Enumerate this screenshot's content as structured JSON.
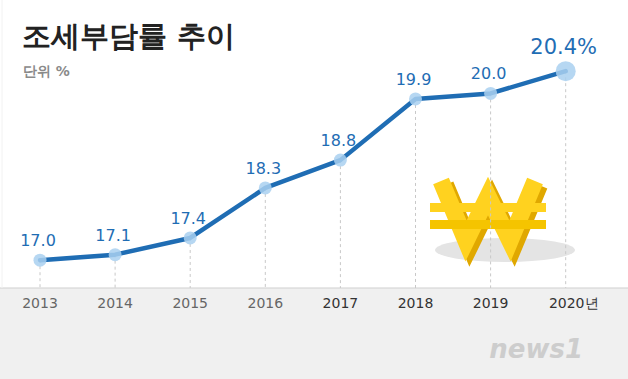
{
  "chart_data": {
    "type": "line",
    "title": "조세부담률 추이",
    "subtitle": "단위 %",
    "categories": [
      "2013",
      "2014",
      "2015",
      "2016",
      "2017",
      "2018",
      "2019",
      "2020년"
    ],
    "values": [
      17.0,
      17.1,
      17.4,
      18.3,
      18.8,
      19.9,
      20.0,
      20.4
    ],
    "value_labels": [
      "17.0",
      "17.1",
      "17.4",
      "18.3",
      "18.8",
      "19.9",
      "20.0",
      "20.4%"
    ],
    "ylim": [
      16.5,
      21.68
    ],
    "color": "#1f6db4",
    "marker": "circle",
    "data_labels": true,
    "tick_labels": "x",
    "grid": false,
    "source": "news1"
  }
}
